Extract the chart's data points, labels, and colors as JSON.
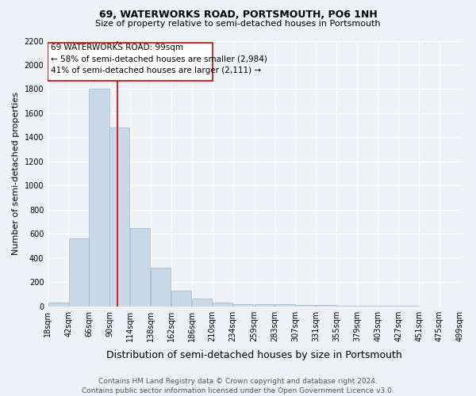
{
  "title": "69, WATERWORKS ROAD, PORTSMOUTH, PO6 1NH",
  "subtitle": "Size of property relative to semi-detached houses in Portsmouth",
  "xlabel": "Distribution of semi-detached houses by size in Portsmouth",
  "ylabel": "Number of semi-detached properties",
  "footer_line1": "Contains HM Land Registry data © Crown copyright and database right 2024.",
  "footer_line2": "Contains public sector information licensed under the Open Government Licence v3.0.",
  "annotation_line1": "69 WATERWORKS ROAD: 99sqm",
  "annotation_line2": "← 58% of semi-detached houses are smaller (2,984)",
  "annotation_line3": "41% of semi-detached houses are larger (2,111) →",
  "bins_left": [
    18,
    42,
    66,
    90,
    114,
    138,
    162,
    186,
    210,
    234,
    259,
    283,
    307,
    331,
    355,
    379,
    403,
    427,
    451,
    475
  ],
  "bin_labels": [
    "18sqm",
    "42sqm",
    "66sqm",
    "90sqm",
    "114sqm",
    "138sqm",
    "162sqm",
    "186sqm",
    "210sqm",
    "234sqm",
    "259sqm",
    "283sqm",
    "307sqm",
    "331sqm",
    "355sqm",
    "379sqm",
    "403sqm",
    "427sqm",
    "451sqm",
    "475sqm",
    "499sqm"
  ],
  "bar_heights": [
    30,
    560,
    1800,
    1480,
    650,
    320,
    130,
    65,
    30,
    20,
    20,
    15,
    10,
    8,
    5,
    3,
    2,
    2,
    1,
    1
  ],
  "bar_color": "#c9d9e8",
  "bar_edge_color": "#9ab5cc",
  "vline_color": "#cc0000",
  "vline_x": 99,
  "annotation_box_edge_color": "#cc0000",
  "annotation_box_facecolor": "#ffffff",
  "ylim": [
    0,
    2200
  ],
  "yticks": [
    0,
    200,
    400,
    600,
    800,
    1000,
    1200,
    1400,
    1600,
    1800,
    2000,
    2200
  ],
  "bg_color": "#eef2f7",
  "grid_color": "#ffffff",
  "title_fontsize": 9,
  "subtitle_fontsize": 8,
  "xlabel_fontsize": 9,
  "ylabel_fontsize": 8,
  "tick_fontsize": 7,
  "annotation_fontsize": 7.5,
  "footer_fontsize": 6.5
}
